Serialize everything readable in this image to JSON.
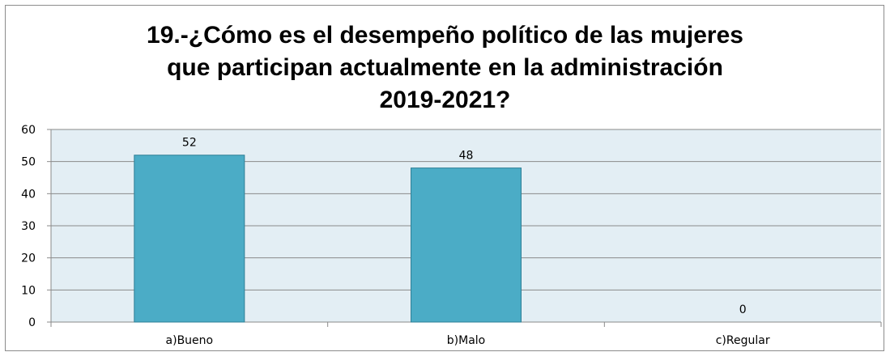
{
  "chart_data": {
    "type": "bar",
    "title_lines": [
      "19.-¿Cómo es el desempeño político de las mujeres",
      "que participan actualmente en la administración",
      "2019-2021?"
    ],
    "categories": [
      "a)Bueno",
      "b)Malo",
      "c)Regular"
    ],
    "values": [
      52,
      48,
      0
    ],
    "ylim": [
      0,
      60
    ],
    "yticks": [
      0,
      10,
      20,
      30,
      40,
      50,
      60
    ],
    "grid": true,
    "colors": {
      "bar": "#4bacc6",
      "bar_border": "#2e7f96",
      "plot_bg": "#e3eef4",
      "grid": "#8a8a8a"
    }
  }
}
